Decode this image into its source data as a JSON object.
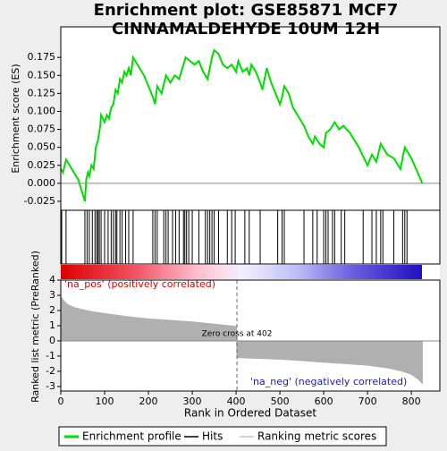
{
  "title_lines": [
    "Enrichment plot: GSE85871 MCF7",
    "CINNAMALDEHYDE 10UM 12H"
  ],
  "legend": [
    {
      "name": "Enrichment profile",
      "color": "#00dd00"
    },
    {
      "name": "Hits",
      "color": "#000000"
    },
    {
      "name": "Ranking metric scores",
      "color": "#c0c0c0"
    }
  ],
  "chart_data": [
    {
      "type": "line",
      "y_label": "Enrichment score (ES)",
      "color": "#00dd00",
      "x": [
        0,
        5,
        12,
        20,
        40,
        55,
        58,
        62,
        65,
        70,
        75,
        80,
        85,
        90,
        92,
        100,
        105,
        110,
        115,
        120,
        125,
        130,
        135,
        140,
        145,
        150,
        155,
        160,
        165,
        175,
        190,
        210,
        215,
        220,
        230,
        240,
        250,
        260,
        270,
        280,
        285,
        295,
        305,
        315,
        325,
        335,
        340,
        345,
        350,
        360,
        370,
        380,
        390,
        400,
        405,
        415,
        425,
        430,
        435,
        445,
        455,
        460,
        470,
        480,
        490,
        500,
        505,
        510,
        520,
        530,
        545,
        555,
        565,
        575,
        580,
        590,
        600,
        605,
        615,
        625,
        635,
        645,
        660,
        680,
        700,
        710,
        720,
        730,
        745,
        760,
        775,
        785,
        800,
        825
      ],
      "values": [
        0.02,
        0.015,
        0.033,
        0.025,
        0.005,
        -0.025,
        0.005,
        0.015,
        0.01,
        0.025,
        0.02,
        0.05,
        0.06,
        0.08,
        0.095,
        0.085,
        0.095,
        0.09,
        0.105,
        0.11,
        0.13,
        0.125,
        0.145,
        0.14,
        0.155,
        0.15,
        0.16,
        0.15,
        0.175,
        0.165,
        0.15,
        0.12,
        0.11,
        0.135,
        0.125,
        0.15,
        0.14,
        0.15,
        0.145,
        0.165,
        0.175,
        0.17,
        0.165,
        0.17,
        0.155,
        0.145,
        0.16,
        0.175,
        0.185,
        0.18,
        0.165,
        0.16,
        0.165,
        0.155,
        0.17,
        0.155,
        0.16,
        0.15,
        0.165,
        0.155,
        0.14,
        0.13,
        0.16,
        0.14,
        0.125,
        0.11,
        0.12,
        0.135,
        0.125,
        0.105,
        0.09,
        0.08,
        0.065,
        0.055,
        0.065,
        0.055,
        0.05,
        0.07,
        0.075,
        0.085,
        0.075,
        0.08,
        0.07,
        0.05,
        0.025,
        0.04,
        0.03,
        0.055,
        0.04,
        0.035,
        0.02,
        0.05,
        0.035,
        0.0
      ],
      "xlim": [
        0,
        865
      ],
      "ylim": [
        -0.0375,
        0.2175
      ],
      "yticks": [
        {
          "value": -0.025,
          "label": "-0.025"
        },
        {
          "value": 0,
          "label": "0.000"
        },
        0.025,
        {
          "value": 0.05,
          "label": "0.050"
        },
        0.075,
        {
          "value": 0.1,
          "label": "0.100"
        },
        0.125,
        {
          "value": 0.15,
          "label": "0.150"
        },
        0.175
      ]
    },
    {
      "type": "hits",
      "color": "#000000",
      "x": [
        2,
        12,
        55,
        60,
        65,
        72,
        78,
        82,
        85,
        88,
        92,
        100,
        108,
        115,
        120,
        125,
        128,
        135,
        140,
        148,
        155,
        165,
        210,
        215,
        220,
        235,
        240,
        245,
        255,
        262,
        270,
        280,
        283,
        287,
        292,
        300,
        315,
        330,
        335,
        340,
        345,
        350,
        360,
        380,
        390,
        398,
        420,
        430,
        455,
        495,
        505,
        510,
        555,
        575,
        585,
        600,
        605,
        610,
        620,
        625,
        640,
        648,
        690,
        710,
        720,
        730,
        735,
        760,
        780,
        785,
        790
      ],
      "xlim": [
        0,
        865
      ],
      "pos_label": "'na_pos' (positively correlated)",
      "neg_label": "'na_neg' (negatively correlated)"
    },
    {
      "type": "area",
      "y_label": "Ranked list metric (PreRanked)",
      "x_label": "Rank in Ordered Dataset",
      "color": "#b0b0b0",
      "x": [
        0,
        5,
        15,
        30,
        50,
        75,
        100,
        150,
        200,
        250,
        300,
        350,
        400,
        401,
        402,
        450,
        500,
        550,
        600,
        650,
        700,
        750,
        780,
        800,
        815,
        825
      ],
      "values": [
        2.9,
        2.7,
        2.4,
        2.2,
        2.05,
        1.9,
        1.8,
        1.6,
        1.45,
        1.35,
        1.25,
        1.1,
        0.95,
        0.95,
        -1.1,
        -1.15,
        -1.2,
        -1.3,
        -1.4,
        -1.5,
        -1.6,
        -1.8,
        -2.0,
        -2.2,
        -2.5,
        -2.8
      ],
      "xlim": [
        0,
        865
      ],
      "ylim": [
        -3.3,
        4
      ],
      "xticks": [
        0,
        100,
        200,
        300,
        400,
        500,
        600,
        700,
        800
      ],
      "yticks": [
        -3,
        -2,
        -1,
        0,
        1,
        2,
        3,
        4
      ],
      "zero_cross": 402,
      "zero_cross_label": "Zero cross at 402"
    }
  ]
}
